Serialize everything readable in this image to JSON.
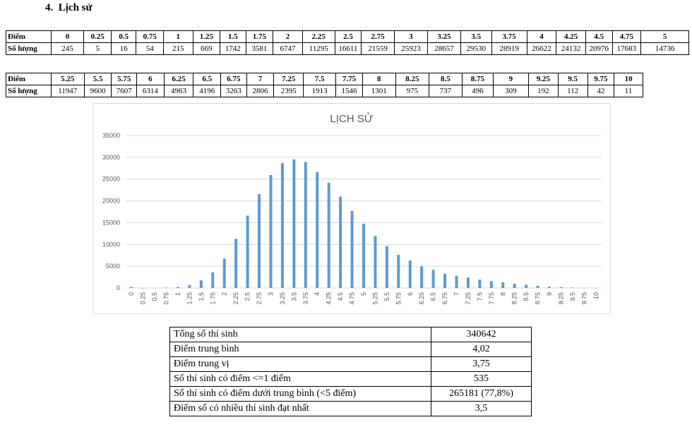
{
  "section": {
    "number": "4.",
    "title": "Lịch sử"
  },
  "table1": {
    "header_label": "Điểm",
    "count_label": "Số lượng",
    "scores": [
      "0",
      "0.25",
      "0.5",
      "0.75",
      "1",
      "1.25",
      "1.5",
      "1.75",
      "2",
      "2.25",
      "2.5",
      "2.75",
      "3",
      "3.25",
      "3.5",
      "3.75",
      "4",
      "4.25",
      "4.5",
      "4.75",
      "5"
    ],
    "counts": [
      "245",
      "5",
      "16",
      "54",
      "215",
      "669",
      "1742",
      "3581",
      "6747",
      "11295",
      "16611",
      "21559",
      "25923",
      "28657",
      "29530",
      "28919",
      "26622",
      "24132",
      "20976",
      "17683",
      "14736"
    ]
  },
  "table2": {
    "header_label": "Điểm",
    "count_label": "Số lượng",
    "scores": [
      "5.25",
      "5.5",
      "5.75",
      "6",
      "6.25",
      "6.5",
      "6.75",
      "7",
      "7.25",
      "7.5",
      "7.75",
      "8",
      "8.25",
      "8.5",
      "8.75",
      "9",
      "9.25",
      "9.5",
      "9.75",
      "10"
    ],
    "counts": [
      "11947",
      "9600",
      "7607",
      "6314",
      "4963",
      "4196",
      "3263",
      "2806",
      "2395",
      "1913",
      "1546",
      "1301",
      "975",
      "737",
      "496",
      "309",
      "192",
      "112",
      "42",
      "11"
    ]
  },
  "chart_data": {
    "type": "bar",
    "title": "LỊCH SỬ",
    "categories": [
      "0",
      "0.25",
      "0.5",
      "0.75",
      "1",
      "1.25",
      "1.5",
      "1.75",
      "2",
      "2.25",
      "2.5",
      "2.75",
      "3",
      "3.25",
      "3.5",
      "3.75",
      "4",
      "4.25",
      "4.5",
      "4.75",
      "5",
      "5.25",
      "5.5",
      "5.75",
      "6",
      "6.25",
      "6.5",
      "6.75",
      "7",
      "7.25",
      "7.5",
      "7.75",
      "8",
      "8.25",
      "8.5",
      "8.75",
      "9",
      "9.25",
      "9.5",
      "9.75",
      "10"
    ],
    "values": [
      245,
      5,
      16,
      54,
      215,
      669,
      1742,
      3581,
      6747,
      11295,
      16611,
      21559,
      25923,
      28657,
      29530,
      28919,
      26622,
      24132,
      20976,
      17683,
      14736,
      11947,
      9600,
      7607,
      6314,
      4963,
      4196,
      3263,
      2806,
      2395,
      1913,
      1546,
      1301,
      975,
      737,
      496,
      309,
      192,
      112,
      42,
      11
    ],
    "yticks": [
      "0",
      "5000",
      "10000",
      "15000",
      "20000",
      "25000",
      "30000",
      "35000"
    ],
    "ylim": [
      0,
      35000
    ],
    "grid": true,
    "xlabel": "",
    "ylabel": "",
    "bar_color": "#5b9bd5"
  },
  "summary": [
    {
      "label": "Tổng số thí sinh",
      "value": "340642"
    },
    {
      "label": "Điểm trung bình",
      "value": "4,02"
    },
    {
      "label": "Điểm trung vị",
      "value": "3,75"
    },
    {
      "label": "Số thí sinh có điểm <=1 điểm",
      "value": "535"
    },
    {
      "label": "Số thí sinh có điểm dưới trung bình (<5 điểm)",
      "value": "265181 (77,8%)"
    },
    {
      "label": "Điểm số có nhiều thí sinh đạt nhất",
      "value": "3,5"
    }
  ]
}
